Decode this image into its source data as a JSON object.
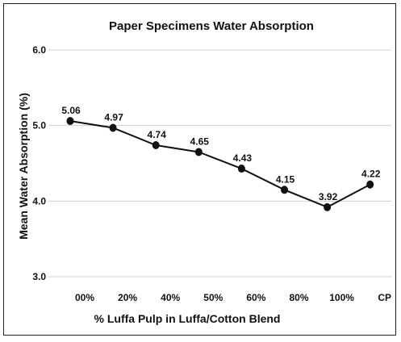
{
  "chart_data": {
    "type": "line",
    "title": "Paper Specimens Water Absorption",
    "xlabel": "% Luffa Pulp in Luffa/Cotton Blend",
    "ylabel": "Mean Water Absorption (%)",
    "ylim": [
      3.0,
      6.0
    ],
    "yticks": [
      "3.0",
      "4.0",
      "5.0",
      "6.0"
    ],
    "categories": [
      "00%",
      "20%",
      "40%",
      "50%",
      "60%",
      "80%",
      "100%",
      "CP"
    ],
    "series": [
      {
        "values": [
          5.06,
          4.97,
          4.74,
          4.65,
          4.43,
          4.15,
          3.92,
          4.22
        ],
        "labels": [
          "5.06",
          "4.97",
          "4.74",
          "4.65",
          "4.43",
          "4.15",
          "3.92",
          "4.22"
        ]
      }
    ],
    "grid": true,
    "legend": "none",
    "line_color": "#111111"
  }
}
